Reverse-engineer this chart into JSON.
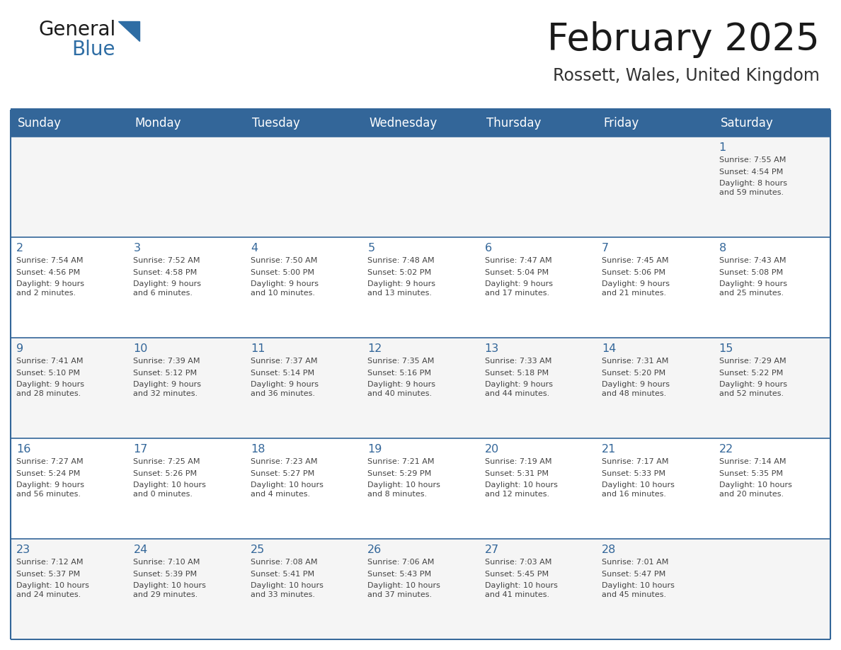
{
  "title": "February 2025",
  "subtitle": "Rossett, Wales, United Kingdom",
  "header_bg": "#336699",
  "header_text_color": "#FFFFFF",
  "row_bg_odd": "#F5F5F5",
  "row_bg_even": "#FFFFFF",
  "separator_color": "#336699",
  "text_color": "#444444",
  "day_num_color": "#336699",
  "days_of_week": [
    "Sunday",
    "Monday",
    "Tuesday",
    "Wednesday",
    "Thursday",
    "Friday",
    "Saturday"
  ],
  "calendar_data": [
    [
      {
        "day": null,
        "sunrise": null,
        "sunset": null,
        "daylight": null
      },
      {
        "day": null,
        "sunrise": null,
        "sunset": null,
        "daylight": null
      },
      {
        "day": null,
        "sunrise": null,
        "sunset": null,
        "daylight": null
      },
      {
        "day": null,
        "sunrise": null,
        "sunset": null,
        "daylight": null
      },
      {
        "day": null,
        "sunrise": null,
        "sunset": null,
        "daylight": null
      },
      {
        "day": null,
        "sunrise": null,
        "sunset": null,
        "daylight": null
      },
      {
        "day": 1,
        "sunrise": "7:55 AM",
        "sunset": "4:54 PM",
        "daylight": "8 hours\nand 59 minutes."
      }
    ],
    [
      {
        "day": 2,
        "sunrise": "7:54 AM",
        "sunset": "4:56 PM",
        "daylight": "9 hours\nand 2 minutes."
      },
      {
        "day": 3,
        "sunrise": "7:52 AM",
        "sunset": "4:58 PM",
        "daylight": "9 hours\nand 6 minutes."
      },
      {
        "day": 4,
        "sunrise": "7:50 AM",
        "sunset": "5:00 PM",
        "daylight": "9 hours\nand 10 minutes."
      },
      {
        "day": 5,
        "sunrise": "7:48 AM",
        "sunset": "5:02 PM",
        "daylight": "9 hours\nand 13 minutes."
      },
      {
        "day": 6,
        "sunrise": "7:47 AM",
        "sunset": "5:04 PM",
        "daylight": "9 hours\nand 17 minutes."
      },
      {
        "day": 7,
        "sunrise": "7:45 AM",
        "sunset": "5:06 PM",
        "daylight": "9 hours\nand 21 minutes."
      },
      {
        "day": 8,
        "sunrise": "7:43 AM",
        "sunset": "5:08 PM",
        "daylight": "9 hours\nand 25 minutes."
      }
    ],
    [
      {
        "day": 9,
        "sunrise": "7:41 AM",
        "sunset": "5:10 PM",
        "daylight": "9 hours\nand 28 minutes."
      },
      {
        "day": 10,
        "sunrise": "7:39 AM",
        "sunset": "5:12 PM",
        "daylight": "9 hours\nand 32 minutes."
      },
      {
        "day": 11,
        "sunrise": "7:37 AM",
        "sunset": "5:14 PM",
        "daylight": "9 hours\nand 36 minutes."
      },
      {
        "day": 12,
        "sunrise": "7:35 AM",
        "sunset": "5:16 PM",
        "daylight": "9 hours\nand 40 minutes."
      },
      {
        "day": 13,
        "sunrise": "7:33 AM",
        "sunset": "5:18 PM",
        "daylight": "9 hours\nand 44 minutes."
      },
      {
        "day": 14,
        "sunrise": "7:31 AM",
        "sunset": "5:20 PM",
        "daylight": "9 hours\nand 48 minutes."
      },
      {
        "day": 15,
        "sunrise": "7:29 AM",
        "sunset": "5:22 PM",
        "daylight": "9 hours\nand 52 minutes."
      }
    ],
    [
      {
        "day": 16,
        "sunrise": "7:27 AM",
        "sunset": "5:24 PM",
        "daylight": "9 hours\nand 56 minutes."
      },
      {
        "day": 17,
        "sunrise": "7:25 AM",
        "sunset": "5:26 PM",
        "daylight": "10 hours\nand 0 minutes."
      },
      {
        "day": 18,
        "sunrise": "7:23 AM",
        "sunset": "5:27 PM",
        "daylight": "10 hours\nand 4 minutes."
      },
      {
        "day": 19,
        "sunrise": "7:21 AM",
        "sunset": "5:29 PM",
        "daylight": "10 hours\nand 8 minutes."
      },
      {
        "day": 20,
        "sunrise": "7:19 AM",
        "sunset": "5:31 PM",
        "daylight": "10 hours\nand 12 minutes."
      },
      {
        "day": 21,
        "sunrise": "7:17 AM",
        "sunset": "5:33 PM",
        "daylight": "10 hours\nand 16 minutes."
      },
      {
        "day": 22,
        "sunrise": "7:14 AM",
        "sunset": "5:35 PM",
        "daylight": "10 hours\nand 20 minutes."
      }
    ],
    [
      {
        "day": 23,
        "sunrise": "7:12 AM",
        "sunset": "5:37 PM",
        "daylight": "10 hours\nand 24 minutes."
      },
      {
        "day": 24,
        "sunrise": "7:10 AM",
        "sunset": "5:39 PM",
        "daylight": "10 hours\nand 29 minutes."
      },
      {
        "day": 25,
        "sunrise": "7:08 AM",
        "sunset": "5:41 PM",
        "daylight": "10 hours\nand 33 minutes."
      },
      {
        "day": 26,
        "sunrise": "7:06 AM",
        "sunset": "5:43 PM",
        "daylight": "10 hours\nand 37 minutes."
      },
      {
        "day": 27,
        "sunrise": "7:03 AM",
        "sunset": "5:45 PM",
        "daylight": "10 hours\nand 41 minutes."
      },
      {
        "day": 28,
        "sunrise": "7:01 AM",
        "sunset": "5:47 PM",
        "daylight": "10 hours\nand 45 minutes."
      },
      {
        "day": null,
        "sunrise": null,
        "sunset": null,
        "daylight": null
      }
    ]
  ]
}
